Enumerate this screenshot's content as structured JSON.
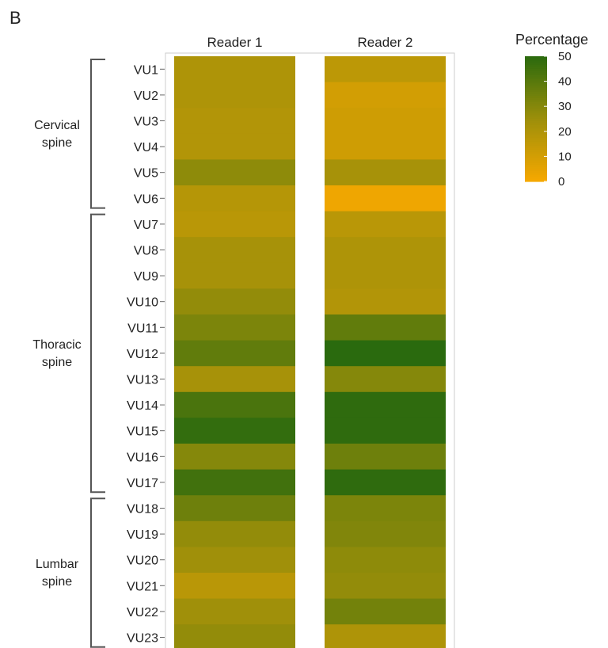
{
  "panel_label": "B",
  "colors": {
    "low": "#F6A800",
    "mid": "#9C8F0A",
    "high": "#2A6A0E",
    "frame": "#cccccc",
    "bracket": "#555555"
  },
  "chart_data": {
    "type": "heatmap",
    "columns": [
      "Reader 1",
      "Reader 2"
    ],
    "rows": [
      "VU1",
      "VU2",
      "VU3",
      "VU4",
      "VU5",
      "VU6",
      "VU7",
      "VU8",
      "VU9",
      "VU10",
      "VU11",
      "VU12",
      "VU13",
      "VU14",
      "VU15",
      "VU16",
      "VU17",
      "VU18",
      "VU19",
      "VU20",
      "VU21",
      "VU22",
      "VU23"
    ],
    "values": [
      [
        20,
        16
      ],
      [
        20,
        10
      ],
      [
        19,
        11
      ],
      [
        19,
        11
      ],
      [
        28,
        22
      ],
      [
        18,
        2
      ],
      [
        17,
        17
      ],
      [
        22,
        20
      ],
      [
        22,
        20
      ],
      [
        27,
        19
      ],
      [
        32,
        38
      ],
      [
        38,
        50
      ],
      [
        22,
        30
      ],
      [
        43,
        49
      ],
      [
        48,
        49
      ],
      [
        30,
        35
      ],
      [
        45,
        49
      ],
      [
        35,
        32
      ],
      [
        27,
        31
      ],
      [
        24,
        28
      ],
      [
        17,
        27
      ],
      [
        24,
        34
      ],
      [
        27,
        20
      ]
    ],
    "groups": [
      {
        "label_lines": [
          "Cervical",
          "spine"
        ],
        "from": 0,
        "to": 5
      },
      {
        "label_lines": [
          "Thoracic",
          "spine"
        ],
        "from": 6,
        "to": 16
      },
      {
        "label_lines": [
          "Lumbar",
          "spine"
        ],
        "from": 17,
        "to": 22
      }
    ],
    "legend": {
      "title": "Percentage",
      "ticks": [
        "0",
        "10",
        "20",
        "30",
        "40",
        "50"
      ],
      "range": [
        0,
        50
      ]
    }
  }
}
